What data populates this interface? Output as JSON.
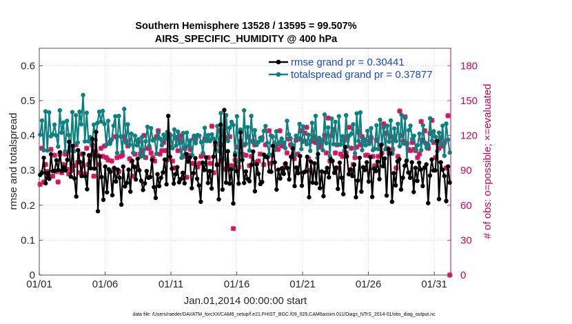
{
  "chart_data": {
    "type": "line",
    "title": "Southern Hemisphere 13528 / 13595 = 99.507%",
    "subtitle": "AIRS_SPECIFIC_HUMIDITY @ 400 hPa",
    "xlabel": "Jan.01,2014 00:00:00 start",
    "ylabel": "rmse and totalspread",
    "ylabel_right": "# of obs: o=possible; ×=evaluated",
    "footer": "data file: /Users/raeder/DAI/ATM_forcXX/CAM6_setup/f.e21.FHIST_BGC.f09_025.CAM6assim.011/Diags_NTrS_2014-01/obs_diag_output.nc",
    "x_ticks": [
      "01/01",
      "01/06",
      "01/11",
      "01/16",
      "01/21",
      "01/26",
      "01/31"
    ],
    "x_tick_days": [
      0,
      5,
      10,
      15,
      20,
      25,
      30
    ],
    "xlim_days": [
      0,
      31.25
    ],
    "ylim": [
      0,
      0.65
    ],
    "y_ticks": [
      "0",
      "0.1",
      "0.2",
      "0.3",
      "0.4",
      "0.5",
      "0.6"
    ],
    "y_tick_values": [
      0,
      0.1,
      0.2,
      0.3,
      0.4,
      0.5,
      0.6
    ],
    "ylim_right": [
      0,
      195
    ],
    "y2_ticks": [
      "0",
      "30",
      "60",
      "90",
      "120",
      "150",
      "180"
    ],
    "y2_tick_values": [
      0,
      30,
      60,
      90,
      120,
      150,
      180
    ],
    "grid": true,
    "legend_position": "top-right",
    "legend": [
      "rmse grand pr = 0.30441",
      "totalspread grand pr = 0.37877"
    ],
    "colors": {
      "rmse": "#000000",
      "spread": "#0e8080",
      "obs": "#d4155d",
      "legend_text": "#1846d6"
    },
    "series": [
      {
        "name": "rmse grand pr = 0.30441",
        "values": [
          0.287,
          0.293,
          0.336,
          0.263,
          0.292,
          0.276,
          0.346,
          0.298,
          0.299,
          0.329,
          0.301,
          0.352,
          0.299,
          0.309,
          0.3,
          0.33,
          0.382,
          0.282,
          0.37,
          0.277,
          0.225,
          0.358,
          0.324,
          0.284,
          0.348,
          0.283,
          0.246,
          0.343,
          0.306,
          0.39,
          0.305,
          0.41,
          0.183,
          0.34,
          0.281,
          0.216,
          0.311,
          0.237,
          0.303,
          0.296,
          0.229,
          0.307,
          0.268,
          0.302,
          0.279,
          0.202,
          0.311,
          0.254,
          0.264,
          0.302,
          0.239,
          0.327,
          0.31,
          0.274,
          0.333,
          0.3,
          0.27,
          0.244,
          0.263,
          0.298,
          0.279,
          0.281,
          0.33,
          0.252,
          0.221,
          0.289,
          0.255,
          0.279,
          0.294,
          0.331,
          0.26,
          0.456,
          0.339,
          0.305,
          0.262,
          0.289,
          0.309,
          0.266,
          0.275,
          0.293,
          0.263,
          0.347,
          0.325,
          0.337,
          0.249,
          0.292,
          0.335,
          0.276,
          0.257,
          0.21,
          0.322,
          0.301,
          0.337,
          0.264,
          0.298,
          0.248,
          0.339,
          0.38,
          0.316,
          0.217,
          0.431,
          0.245,
          0.473,
          0.265,
          0.355,
          0.262,
          0.303,
          0.205,
          0.343,
          0.298,
          0.262,
          0.409,
          0.33,
          0.264,
          0.297,
          0.275,
          0.269,
          0.316,
          0.354,
          0.24,
          0.317,
          0.29,
          0.261,
          0.267,
          0.345,
          0.339,
          0.337,
          0.297,
          0.296,
          0.37,
          0.323,
          0.245,
          0.302,
          0.277,
          0.306,
          0.29,
          0.32,
          0.307,
          0.274,
          0.339,
          0.363,
          0.255,
          0.308,
          0.292,
          0.341,
          0.256,
          0.294,
          0.297,
          0.339,
          0.223,
          0.325,
          0.265,
          0.32,
          0.263,
          0.347,
          0.249,
          0.297,
          0.226,
          0.294,
          0.307,
          0.28,
          0.332,
          0.327,
          0.293,
          0.308,
          0.247,
          0.322,
          0.279,
          0.232,
          0.367,
          0.34,
          0.289,
          0.303,
          0.284,
          0.316,
          0.223,
          0.271,
          0.336,
          0.239,
          0.309,
          0.301,
          0.323,
          0.268,
          0.338,
          0.224,
          0.305,
          0.298,
          0.325,
          0.275,
          0.373,
          0.312,
          0.334,
          0.228,
          0.361,
          0.349,
          0.21,
          0.292,
          0.257,
          0.326,
          0.332,
          0.245,
          0.279,
          0.313,
          0.327,
          0.294,
          0.279,
          0.323,
          0.238,
          0.307,
          0.27,
          0.322,
          0.302,
          0.255,
          0.308,
          0.317,
          0.206,
          0.285,
          0.331,
          0.3,
          0.3,
          0.384,
          0.218,
          0.323,
          0.302,
          0.284,
          0.212,
          0.311,
          0.265
        ]
      },
      {
        "name": "totalspread grand pr = 0.37877",
        "values": [
          0.402,
          0.443,
          0.358,
          0.469,
          0.357,
          0.466,
          0.398,
          0.403,
          0.431,
          0.4,
          0.368,
          0.472,
          0.408,
          0.437,
          0.355,
          0.442,
          0.401,
          0.357,
          0.467,
          0.355,
          0.458,
          0.38,
          0.468,
          0.432,
          0.516,
          0.383,
          0.465,
          0.383,
          0.395,
          0.374,
          0.431,
          0.387,
          0.436,
          0.468,
          0.44,
          0.47,
          0.433,
          0.373,
          0.442,
          0.376,
          0.388,
          0.428,
          0.455,
          0.35,
          0.456,
          0.397,
          0.353,
          0.476,
          0.379,
          0.432,
          0.373,
          0.405,
          0.35,
          0.399,
          0.372,
          0.389,
          0.339,
          0.396,
          0.34,
          0.383,
          0.425,
          0.37,
          0.421,
          0.386,
          0.39,
          0.348,
          0.408,
          0.391,
          0.372,
          0.402,
          0.389,
          0.41,
          0.341,
          0.4,
          0.364,
          0.417,
          0.371,
          0.411,
          0.378,
          0.336,
          0.407,
          0.346,
          0.408,
          0.37,
          0.386,
          0.344,
          0.399,
          0.378,
          0.401,
          0.399,
          0.381,
          0.35,
          0.422,
          0.384,
          0.401,
          0.384,
          0.403,
          0.391,
          0.361,
          0.427,
          0.355,
          0.464,
          0.4,
          0.333,
          0.458,
          0.384,
          0.422,
          0.439,
          0.43,
          0.35,
          0.455,
          0.323,
          0.417,
          0.341,
          0.472,
          0.376,
          0.424,
          0.357,
          0.456,
          0.381,
          0.415,
          0.373,
          0.381,
          0.393,
          0.386,
          0.413,
          0.427,
          0.379,
          0.346,
          0.4,
          0.397,
          0.358,
          0.412,
          0.375,
          0.381,
          0.391,
          0.38,
          0.364,
          0.442,
          0.403,
          0.392,
          0.373,
          0.345,
          0.399,
          0.393,
          0.433,
          0.361,
          0.426,
          0.385,
          0.375,
          0.402,
          0.356,
          0.436,
          0.389,
          0.456,
          0.336,
          0.393,
          0.385,
          0.358,
          0.46,
          0.378,
          0.423,
          0.34,
          0.448,
          0.375,
          0.439,
          0.374,
          0.455,
          0.374,
          0.398,
          0.357,
          0.458,
          0.368,
          0.4,
          0.405,
          0.432,
          0.349,
          0.463,
          0.384,
          0.466,
          0.358,
          0.389,
          0.372,
          0.413,
          0.376,
          0.421,
          0.358,
          0.362,
          0.429,
          0.361,
          0.445,
          0.375,
          0.422,
          0.361,
          0.428,
          0.382,
          0.443,
          0.348,
          0.42,
          0.384,
          0.433,
          0.369,
          0.459,
          0.377,
          0.45,
          0.329,
          0.415,
          0.428,
          0.39,
          0.399,
          0.359,
          0.372,
          0.405,
          0.358,
          0.429,
          0.379,
          0.365,
          0.373,
          0.449,
          0.385,
          0.412,
          0.396,
          0.355,
          0.408,
          0.375,
          0.428,
          0.342,
          0.434,
          0.388,
          0.351
        ]
      },
      {
        "name": "# of obs evaluated",
        "axis": "right",
        "values": [
          78,
          109,
          80,
          95,
          89,
          84,
          108,
          85,
          103,
          89,
          80,
          104,
          88,
          95,
          104,
          91,
          87,
          108,
          90,
          94,
          112,
          97,
          88,
          104,
          94,
          87,
          109,
          95,
          103,
          112,
          85,
          106,
          103,
          95,
          109,
          102,
          111,
          101,
          99,
          114,
          98,
          90,
          119,
          101,
          89,
          102,
          103,
          119,
          115,
          111,
          100,
          98,
          85,
          104,
          93,
          115,
          104,
          107,
          120,
          101,
          109,
          109,
          105,
          101,
          98,
          119,
          124,
          104,
          107,
          114,
          107,
          99,
          121,
          110,
          98,
          92,
          118,
          107,
          116,
          120,
          102,
          109,
          84,
          103,
          108,
          96,
          118,
          117,
          93,
          96,
          102,
          103,
          117,
          116,
          101,
          96,
          128,
          88,
          112,
          95,
          124,
          98,
          112,
          91,
          118,
          91,
          119,
          94,
          40,
          99,
          110,
          93,
          115,
          104,
          112,
          103,
          119,
          94,
          102,
          115,
          112,
          97,
          98,
          104,
          118,
          95,
          112,
          102,
          124,
          96,
          103,
          113,
          110,
          108,
          124,
          111,
          111,
          95,
          105,
          117,
          112,
          110,
          100,
          116,
          104,
          117,
          124,
          115,
          122,
          127,
          100,
          90,
          115,
          119,
          114,
          115,
          110,
          113,
          116,
          120,
          105,
          135,
          98,
          120,
          125,
          105,
          112,
          92,
          104,
          102,
          116,
          105,
          119,
          127,
          109,
          95,
          101,
          110,
          123,
          112,
          119,
          116,
          103,
          103,
          115,
          118,
          102,
          94,
          116,
          102,
          110,
          105,
          130,
          122,
          109,
          105,
          119,
          108,
          117,
          92,
          102,
          141,
          120,
          115,
          136,
          113,
          108,
          107,
          114,
          108,
          107,
          101,
          104,
          132,
          116,
          124,
          113,
          109,
          122,
          133,
          114,
          101,
          114,
          109,
          118,
          111,
          114,
          92,
          137,
          0
        ]
      }
    ]
  }
}
